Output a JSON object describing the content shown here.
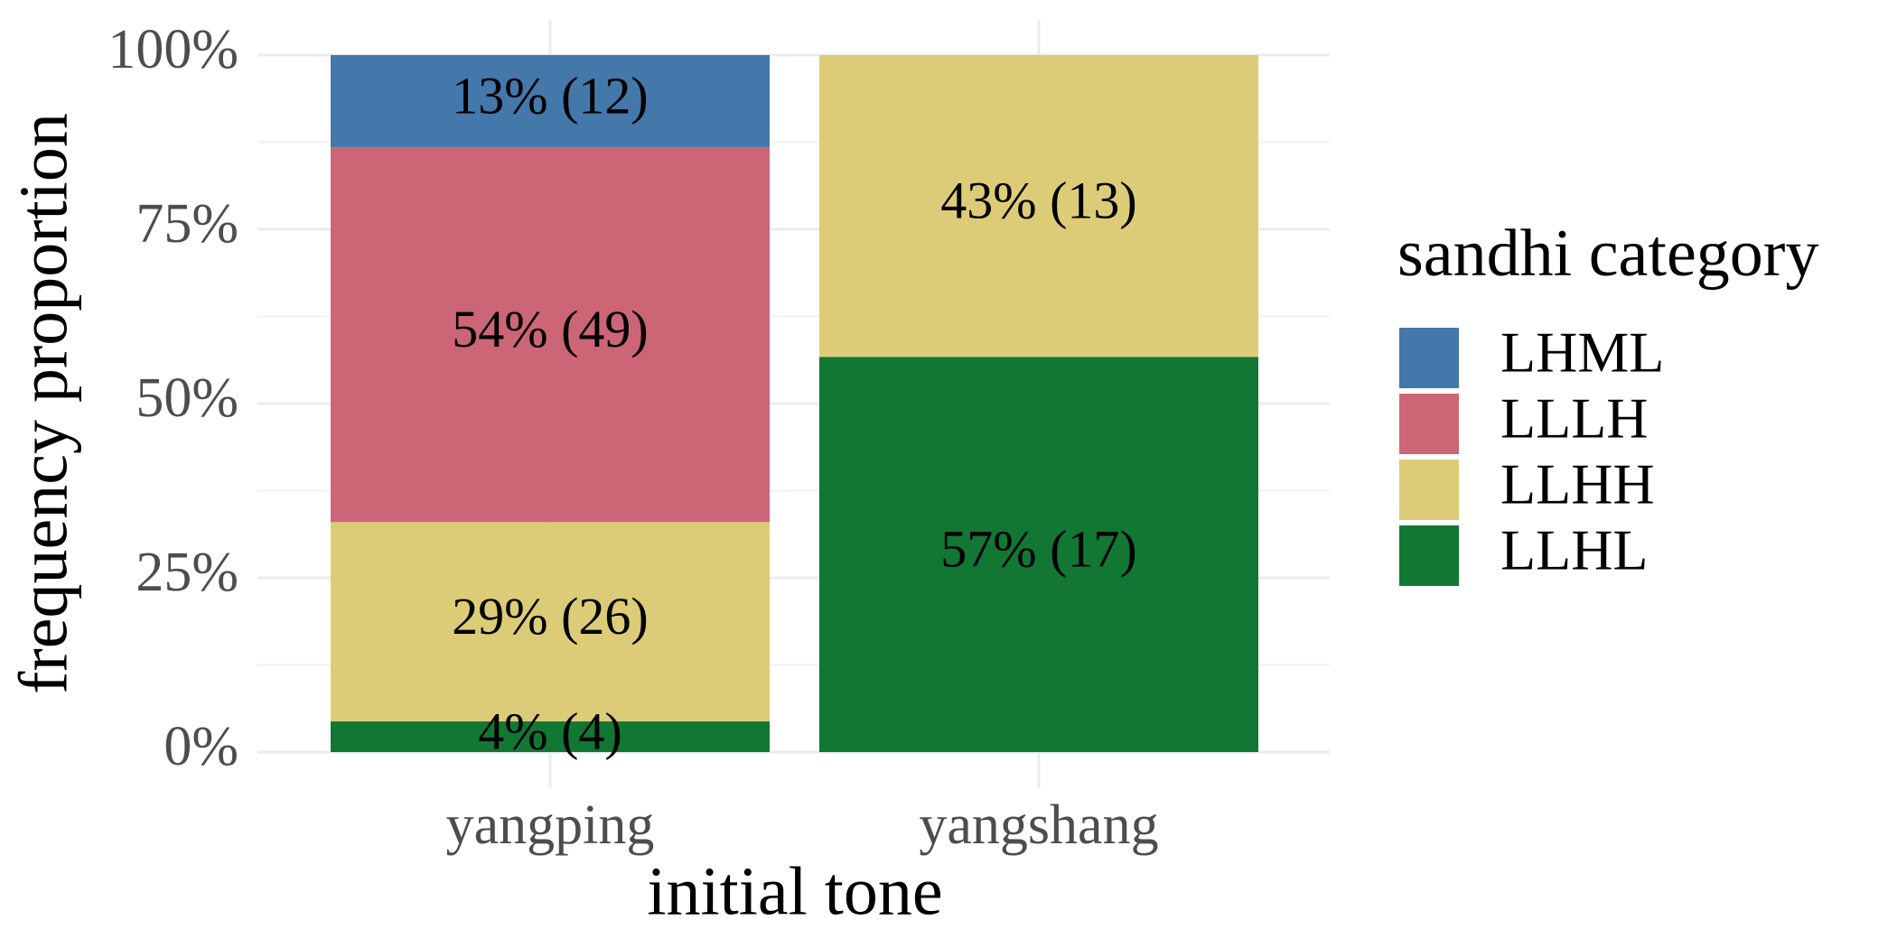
{
  "chart_data": {
    "type": "stacked_bar",
    "x_label": "initial tone",
    "y_label": "frequency proportion",
    "legend_title": "sandhi category",
    "legend_position": "right",
    "categories": [
      "yangping",
      "yangshang"
    ],
    "series": [
      {
        "name": "LHML",
        "color": "#4477aa",
        "values": [
          13.2,
          null
        ],
        "value_labels": [
          "13% (12)",
          null
        ]
      },
      {
        "name": "LLLH",
        "color": "#cc6677",
        "values": [
          53.8,
          null
        ],
        "value_labels": [
          "54% (49)",
          null
        ]
      },
      {
        "name": "LLHH",
        "color": "#ddcc77",
        "values": [
          28.6,
          43.3
        ],
        "value_labels": [
          "29% (26)",
          "43% (13)"
        ]
      },
      {
        "name": "LLHL",
        "color": "#117733",
        "values": [
          4.4,
          56.7
        ],
        "value_labels": [
          "4% (4)",
          "57% (17)"
        ]
      }
    ],
    "ylim": [
      0,
      100
    ],
    "yticks": [
      {
        "value": 0,
        "label": "0%"
      },
      {
        "value": 25,
        "label": "25%"
      },
      {
        "value": 50,
        "label": "50%"
      },
      {
        "value": 75,
        "label": "75%"
      },
      {
        "value": 100,
        "label": "100%"
      }
    ],
    "grid": true
  }
}
